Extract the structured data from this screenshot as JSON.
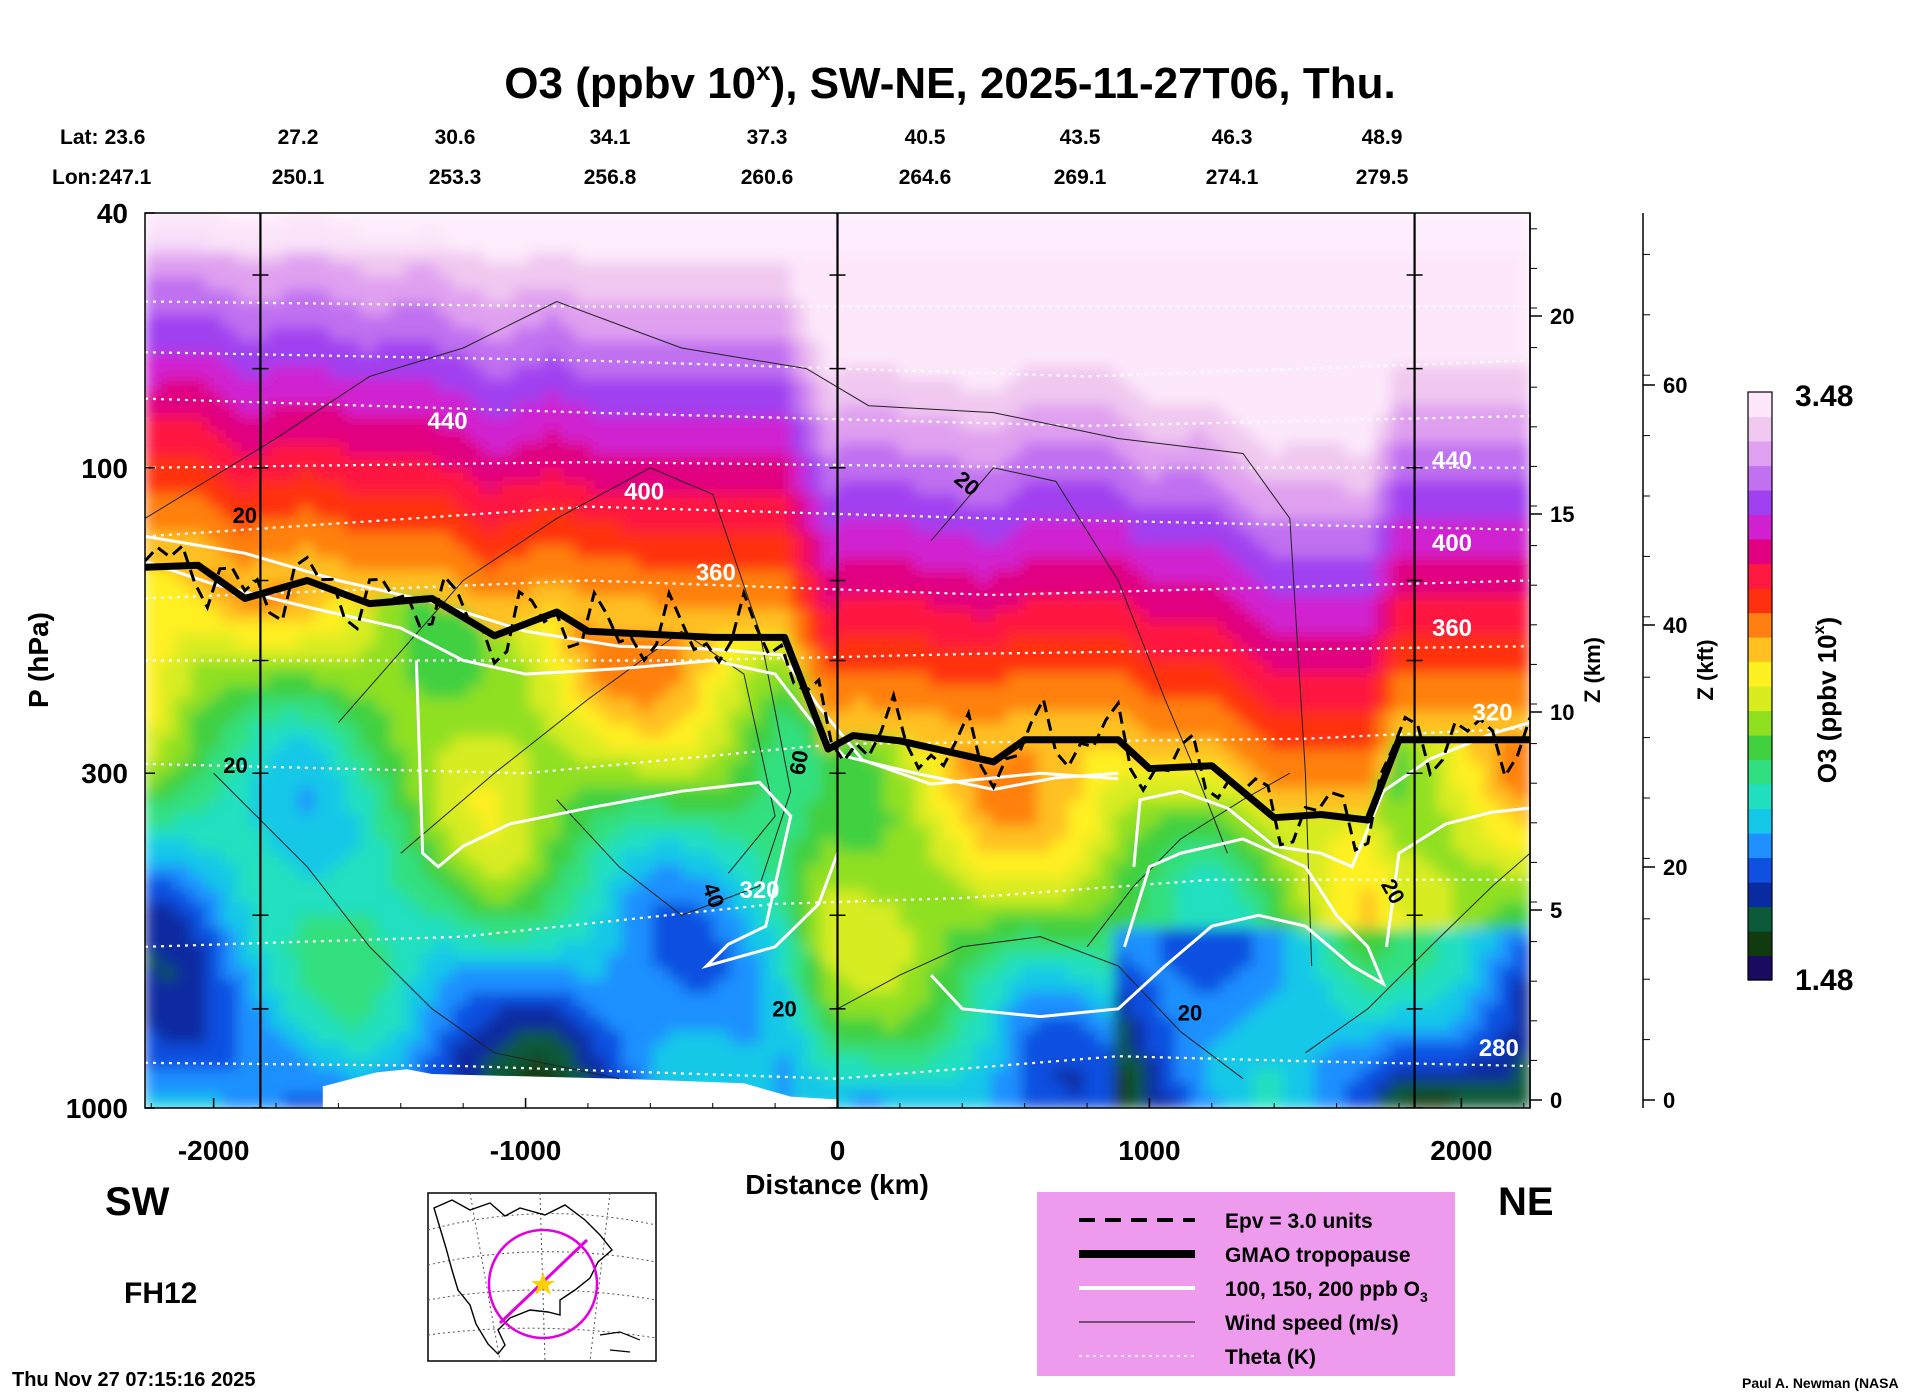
{
  "chart_data": {
    "type": "heatmap",
    "title": "O3 (ppbv 10",
    "title_sup": "x",
    "title_rest": "), SW-NE, 2025-11-27T06, Thu.",
    "xlabel": "Distance (km)",
    "ylabel": "P (hPa)",
    "xlim": [
      -2220,
      2220
    ],
    "ylim_pressure_hpa": [
      1000,
      40
    ],
    "y_scale": "log",
    "x_ticks": [
      -2000,
      -1000,
      0,
      1000,
      2000
    ],
    "x_tick_labels": [
      "-2000",
      "-1000",
      "0",
      "1000",
      "2000"
    ],
    "y_ticks": [
      1000,
      300,
      100,
      40
    ],
    "y_tick_labels": [
      "1000",
      "300",
      "100",
      "40"
    ],
    "lat_label": "Lat:",
    "lon_label": "Lon:",
    "lat_values": [
      "23.6",
      "27.2",
      "30.6",
      "34.1",
      "37.3",
      "40.5",
      "43.5",
      "46.3",
      "48.9"
    ],
    "lon_values": [
      "247.1",
      "250.1",
      "253.3",
      "256.8",
      "260.6",
      "264.6",
      "269.1",
      "274.1",
      "279.5"
    ],
    "z_km_label": "Z (km)",
    "z_km_ticks": [
      "0",
      "5",
      "10",
      "15",
      "20"
    ],
    "z_kft_label": "Z (kft)",
    "z_kft_ticks": [
      "0",
      "20",
      "40",
      "60"
    ],
    "colorbar": {
      "label": "O3 (ppbv 10",
      "label_sup": "x",
      "label_rest": ")",
      "min": "1.48",
      "max": "3.48",
      "colors": [
        "#1a0a60",
        "#123a10",
        "#0b5a3a",
        "#0a2aa0",
        "#1050e0",
        "#1e90ff",
        "#16c8e8",
        "#20e0c0",
        "#30e080",
        "#40d040",
        "#90e020",
        "#d8ec20",
        "#fff020",
        "#ffc020",
        "#ff8010",
        "#ff3010",
        "#ff1840",
        "#e00080",
        "#d020d0",
        "#a040f0",
        "#c070f0",
        "#e0a0f0",
        "#f0c8f0",
        "#fde8fb"
      ]
    },
    "vertical_markers_km": [
      -1850,
      0,
      1850
    ],
    "tropopause_points": [
      [
        -2220,
        143
      ],
      [
        -2050,
        142
      ],
      [
        -1900,
        160
      ],
      [
        -1700,
        150
      ],
      [
        -1500,
        163
      ],
      [
        -1300,
        160
      ],
      [
        -1100,
        183
      ],
      [
        -900,
        168
      ],
      [
        -800,
        180
      ],
      [
        -600,
        182
      ],
      [
        -400,
        184
      ],
      [
        -170,
        184
      ],
      [
        -100,
        225
      ],
      [
        -30,
        275
      ],
      [
        50,
        262
      ],
      [
        200,
        267
      ],
      [
        500,
        288
      ],
      [
        600,
        266
      ],
      [
        900,
        266
      ],
      [
        1000,
        295
      ],
      [
        1200,
        292
      ],
      [
        1400,
        352
      ],
      [
        1550,
        348
      ],
      [
        1700,
        355
      ],
      [
        1800,
        266
      ],
      [
        2000,
        266
      ],
      [
        2220,
        266
      ]
    ],
    "theta_levels_k": [
      {
        "label": "280",
        "p_hpa": 830
      },
      {
        "label": "320",
        "p_hpa": 420
      },
      {
        "label": "360",
        "p_hpa": 150
      },
      {
        "label": "400",
        "p_hpa": 110
      },
      {
        "label": "440",
        "p_hpa": 85
      }
    ],
    "wind_labels_ms": [
      "20",
      "20",
      "20",
      "20",
      "20",
      "20",
      "40",
      "60"
    ],
    "region_left": "SW",
    "region_right": "NE",
    "forecast_hour": "FH12",
    "legend": {
      "items": [
        {
          "label": "Epv = 3.0 units",
          "style": "dashed"
        },
        {
          "label": "GMAO tropopause",
          "style": "thick"
        },
        {
          "label": "100, 150, 200 ppb O",
          "sub": "3",
          "style": "white"
        },
        {
          "label": "Wind speed (m/s)",
          "style": "thin"
        },
        {
          "label": "Theta (K)",
          "style": "dotted"
        }
      ],
      "background": "#ee9bee",
      "placement": "bottom-right"
    },
    "timestamp": "Thu Nov 27 07:15:16 2025",
    "credit": "Paul A. Newman (NASA"
  }
}
